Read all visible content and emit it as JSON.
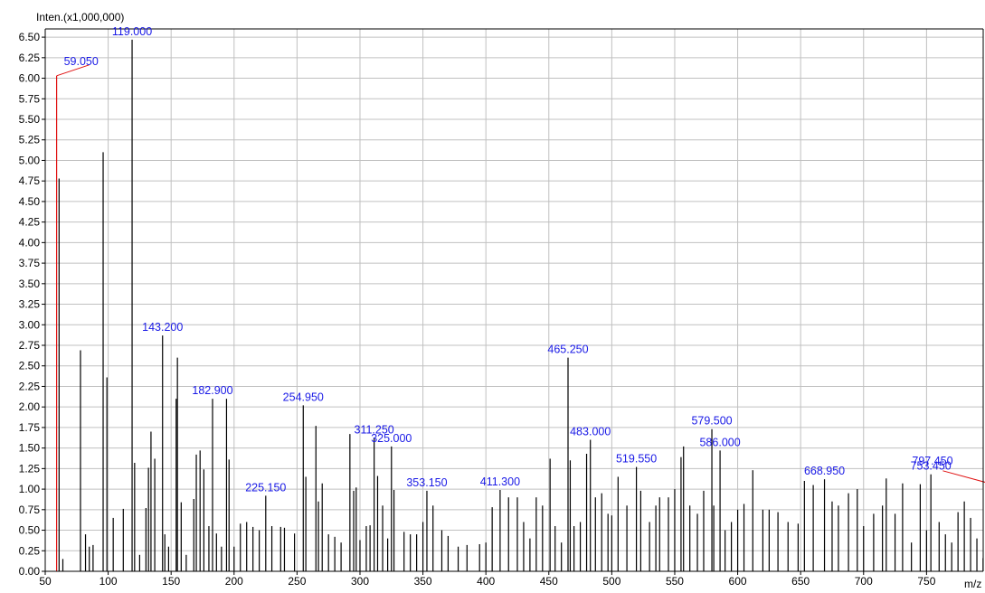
{
  "chart_data": {
    "type": "bar",
    "title": "",
    "ylabel": "Inten.(x1,000,000)",
    "xlabel": "m/z",
    "xlim": [
      50,
      795
    ],
    "ylim": [
      0,
      6.6
    ],
    "grid": true,
    "colors": {
      "peak": "#000000",
      "label": "#1a1ae6",
      "leader": "#e01010",
      "grid": "#c0c0c0",
      "axis": "#000000"
    },
    "x_ticks": [
      {
        "value": 50,
        "label": "50"
      },
      {
        "value": 100,
        "label": "100"
      },
      {
        "value": 150,
        "label": "150"
      },
      {
        "value": 200,
        "label": "200"
      },
      {
        "value": 250,
        "label": "250"
      },
      {
        "value": 300,
        "label": "300"
      },
      {
        "value": 350,
        "label": "350"
      },
      {
        "value": 400,
        "label": "400"
      },
      {
        "value": 450,
        "label": "450"
      },
      {
        "value": 500,
        "label": "500"
      },
      {
        "value": 550,
        "label": "550"
      },
      {
        "value": 600,
        "label": "600"
      },
      {
        "value": 650,
        "label": "650"
      },
      {
        "value": 700,
        "label": "700"
      },
      {
        "value": 750,
        "label": "750"
      }
    ],
    "y_ticks": [
      {
        "value": 0.0,
        "label": "0.00"
      },
      {
        "value": 0.25,
        "label": "0.25"
      },
      {
        "value": 0.5,
        "label": "0.50"
      },
      {
        "value": 0.75,
        "label": "0.75"
      },
      {
        "value": 1.0,
        "label": "1.00"
      },
      {
        "value": 1.25,
        "label": "1.25"
      },
      {
        "value": 1.5,
        "label": "1.50"
      },
      {
        "value": 1.75,
        "label": "1.75"
      },
      {
        "value": 2.0,
        "label": "2.00"
      },
      {
        "value": 2.25,
        "label": "2.25"
      },
      {
        "value": 2.5,
        "label": "2.50"
      },
      {
        "value": 2.75,
        "label": "2.75"
      },
      {
        "value": 3.0,
        "label": "3.00"
      },
      {
        "value": 3.25,
        "label": "3.25"
      },
      {
        "value": 3.5,
        "label": "3.50"
      },
      {
        "value": 3.75,
        "label": "3.75"
      },
      {
        "value": 4.0,
        "label": "4.00"
      },
      {
        "value": 4.25,
        "label": "4.25"
      },
      {
        "value": 4.5,
        "label": "4.50"
      },
      {
        "value": 4.75,
        "label": "4.75"
      },
      {
        "value": 5.0,
        "label": "5.00"
      },
      {
        "value": 5.25,
        "label": "5.25"
      },
      {
        "value": 5.5,
        "label": "5.50"
      },
      {
        "value": 5.75,
        "label": "5.75"
      },
      {
        "value": 6.0,
        "label": "6.00"
      },
      {
        "value": 6.25,
        "label": "6.25"
      },
      {
        "value": 6.5,
        "label": "6.50"
      }
    ],
    "peaks": [
      [
        59.05,
        6.03
      ],
      [
        61,
        4.78
      ],
      [
        64,
        0.15
      ],
      [
        78,
        2.69
      ],
      [
        82,
        0.45
      ],
      [
        85,
        0.3
      ],
      [
        88,
        0.32
      ],
      [
        96,
        5.1
      ],
      [
        99,
        2.36
      ],
      [
        104,
        0.65
      ],
      [
        112,
        0.76
      ],
      [
        119,
        6.47
      ],
      [
        121,
        1.32
      ],
      [
        125,
        0.2
      ],
      [
        130,
        0.77
      ],
      [
        132,
        1.26
      ],
      [
        134,
        1.7
      ],
      [
        137,
        1.37
      ],
      [
        143.2,
        2.87
      ],
      [
        145,
        0.45
      ],
      [
        148,
        0.3
      ],
      [
        154,
        2.1
      ],
      [
        155,
        2.6
      ],
      [
        158,
        0.84
      ],
      [
        162,
        0.2
      ],
      [
        168,
        0.88
      ],
      [
        170,
        1.42
      ],
      [
        173,
        1.47
      ],
      [
        176,
        1.24
      ],
      [
        180,
        0.55
      ],
      [
        182.9,
        2.1
      ],
      [
        186,
        0.46
      ],
      [
        190,
        0.3
      ],
      [
        194,
        2.1
      ],
      [
        196,
        1.36
      ],
      [
        200,
        0.3
      ],
      [
        205,
        0.58
      ],
      [
        210,
        0.6
      ],
      [
        215,
        0.54
      ],
      [
        220,
        0.5
      ],
      [
        225.15,
        0.92
      ],
      [
        230,
        0.55
      ],
      [
        237,
        0.54
      ],
      [
        240,
        0.53
      ],
      [
        248,
        0.46
      ],
      [
        254.95,
        2.02
      ],
      [
        257,
        1.15
      ],
      [
        265,
        1.77
      ],
      [
        267,
        0.85
      ],
      [
        270,
        1.07
      ],
      [
        275,
        0.45
      ],
      [
        280,
        0.42
      ],
      [
        285,
        0.35
      ],
      [
        292,
        1.67
      ],
      [
        295,
        0.98
      ],
      [
        297,
        1.02
      ],
      [
        300,
        0.38
      ],
      [
        305,
        0.55
      ],
      [
        308,
        0.56
      ],
      [
        311.25,
        1.62
      ],
      [
        314,
        1.16
      ],
      [
        318,
        0.8
      ],
      [
        322,
        0.4
      ],
      [
        325,
        1.52
      ],
      [
        327,
        0.99
      ],
      [
        335,
        0.48
      ],
      [
        340,
        0.45
      ],
      [
        345,
        0.45
      ],
      [
        350,
        0.6
      ],
      [
        353.15,
        0.98
      ],
      [
        358,
        0.8
      ],
      [
        365,
        0.5
      ],
      [
        370,
        0.43
      ],
      [
        378,
        0.3
      ],
      [
        385,
        0.32
      ],
      [
        395,
        0.33
      ],
      [
        400,
        0.35
      ],
      [
        405,
        0.78
      ],
      [
        411.3,
        0.99
      ],
      [
        418,
        0.9
      ],
      [
        425,
        0.9
      ],
      [
        430,
        0.6
      ],
      [
        435,
        0.4
      ],
      [
        440,
        0.9
      ],
      [
        445,
        0.8
      ],
      [
        451,
        1.37
      ],
      [
        455,
        0.55
      ],
      [
        460,
        0.35
      ],
      [
        465.25,
        2.6
      ],
      [
        467,
        1.35
      ],
      [
        470,
        0.55
      ],
      [
        475,
        0.6
      ],
      [
        480,
        1.43
      ],
      [
        483,
        1.6
      ],
      [
        487,
        0.9
      ],
      [
        492,
        0.95
      ],
      [
        497,
        0.7
      ],
      [
        500,
        0.68
      ],
      [
        505,
        1.15
      ],
      [
        512,
        0.8
      ],
      [
        519.55,
        1.27
      ],
      [
        523,
        0.98
      ],
      [
        530,
        0.6
      ],
      [
        535,
        0.8
      ],
      [
        538,
        0.9
      ],
      [
        545,
        0.9
      ],
      [
        550,
        1.0
      ],
      [
        555,
        1.39
      ],
      [
        557,
        1.52
      ],
      [
        562,
        0.8
      ],
      [
        568,
        0.7
      ],
      [
        573,
        0.98
      ],
      [
        579.5,
        1.73
      ],
      [
        581,
        0.8
      ],
      [
        586,
        1.47
      ],
      [
        590,
        0.5
      ],
      [
        595,
        0.6
      ],
      [
        600,
        0.75
      ],
      [
        605,
        0.82
      ],
      [
        612,
        1.23
      ],
      [
        620,
        0.75
      ],
      [
        625,
        0.75
      ],
      [
        632,
        0.72
      ],
      [
        640,
        0.6
      ],
      [
        648,
        0.58
      ],
      [
        653,
        1.1
      ],
      [
        660,
        1.05
      ],
      [
        668.95,
        1.12
      ],
      [
        675,
        0.85
      ],
      [
        680,
        0.8
      ],
      [
        688,
        0.95
      ],
      [
        695,
        1.0
      ],
      [
        700,
        0.55
      ],
      [
        708,
        0.7
      ],
      [
        715,
        0.8
      ],
      [
        718,
        1.13
      ],
      [
        725,
        0.7
      ],
      [
        731,
        1.07
      ],
      [
        738,
        0.35
      ],
      [
        745,
        1.06
      ],
      [
        750,
        0.5
      ],
      [
        753.45,
        1.18
      ],
      [
        760,
        0.6
      ],
      [
        765,
        0.45
      ],
      [
        770,
        0.35
      ],
      [
        775,
        0.72
      ],
      [
        780,
        0.85
      ],
      [
        785,
        0.65
      ],
      [
        790,
        0.4
      ],
      [
        794.9,
        0.16
      ]
    ],
    "annotations": [
      {
        "label": "59.050",
        "mz": 59.05,
        "intensity": 6.03,
        "leader": true
      },
      {
        "label": "119.000",
        "mz": 119.0,
        "intensity": 6.47,
        "leader": false
      },
      {
        "label": "143.200",
        "mz": 143.2,
        "intensity": 2.87,
        "leader": false
      },
      {
        "label": "182.900",
        "mz": 182.9,
        "intensity": 2.1,
        "leader": false
      },
      {
        "label": "225.150",
        "mz": 225.15,
        "intensity": 0.92,
        "leader": false
      },
      {
        "label": "254.950",
        "mz": 254.95,
        "intensity": 2.02,
        "leader": false
      },
      {
        "label": "311.250",
        "mz": 311.25,
        "intensity": 1.62,
        "leader": false
      },
      {
        "label": "325.000",
        "mz": 325.0,
        "intensity": 1.52,
        "leader": false
      },
      {
        "label": "353.150",
        "mz": 353.15,
        "intensity": 0.98,
        "leader": false
      },
      {
        "label": "411.300",
        "mz": 411.3,
        "intensity": 0.99,
        "leader": false
      },
      {
        "label": "465.250",
        "mz": 465.25,
        "intensity": 2.6,
        "leader": false
      },
      {
        "label": "483.000",
        "mz": 483.0,
        "intensity": 1.6,
        "leader": false
      },
      {
        "label": "519.550",
        "mz": 519.55,
        "intensity": 1.27,
        "leader": false
      },
      {
        "label": "579.500",
        "mz": 579.5,
        "intensity": 1.73,
        "leader": false
      },
      {
        "label": "586.000",
        "mz": 586.0,
        "intensity": 1.47,
        "leader": false
      },
      {
        "label": "668.950",
        "mz": 668.95,
        "intensity": 1.12,
        "leader": false
      },
      {
        "label": "753.450",
        "mz": 753.45,
        "intensity": 1.18,
        "leader": false
      },
      {
        "label": "797.450",
        "mz": 797.45,
        "intensity": 1.08,
        "leader": true
      }
    ]
  }
}
